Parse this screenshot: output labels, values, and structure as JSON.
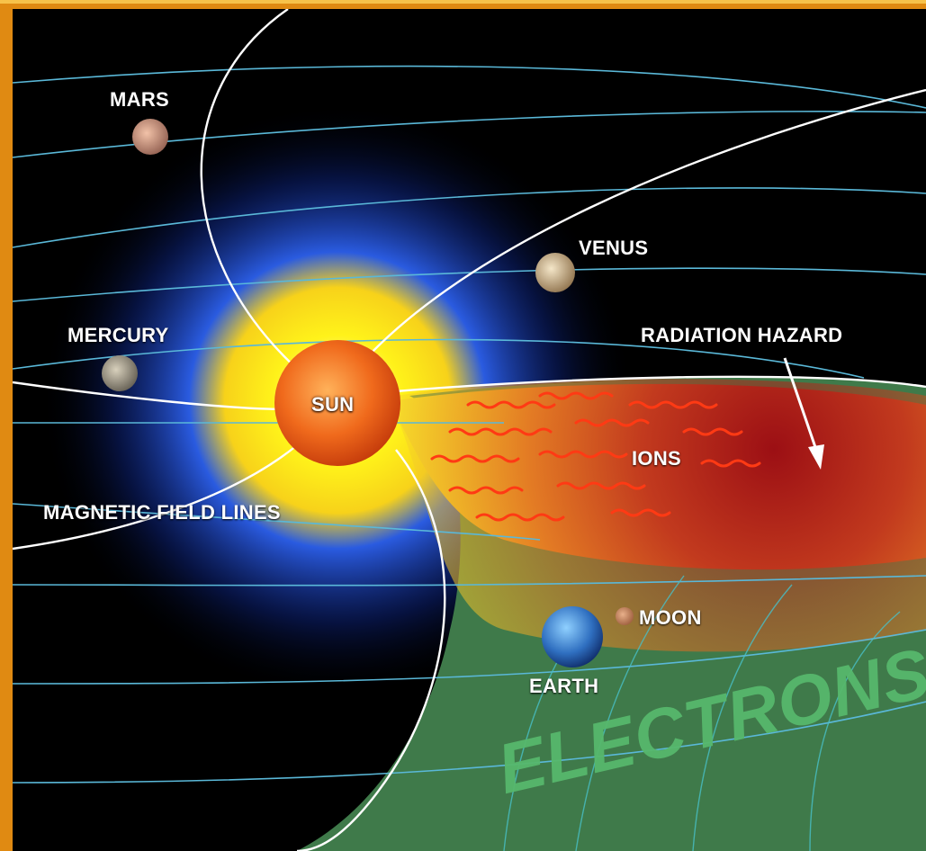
{
  "labels": {
    "mars": "MARS",
    "venus": "VENUS",
    "mercury": "MERCURY",
    "sun": "SUN",
    "radiation_hazard": "RADIATION HAZARD",
    "ions": "IONS",
    "magnetic_field_lines": "MAGNETIC FIELD LINES",
    "moon": "MOON",
    "earth": "EARTH",
    "electrons": "ELECTRONS"
  },
  "colors": {
    "frame": "#f0a21a",
    "space": "#000000",
    "orbit": "#5ab8d8",
    "field_line": "#ffffff",
    "sun_core": "#f0661a",
    "sun_glow": "#ffe81a",
    "blue_halo": "#1e4fd8",
    "radiation": "#b81c1c",
    "electron_region": "#3f7a4a"
  }
}
